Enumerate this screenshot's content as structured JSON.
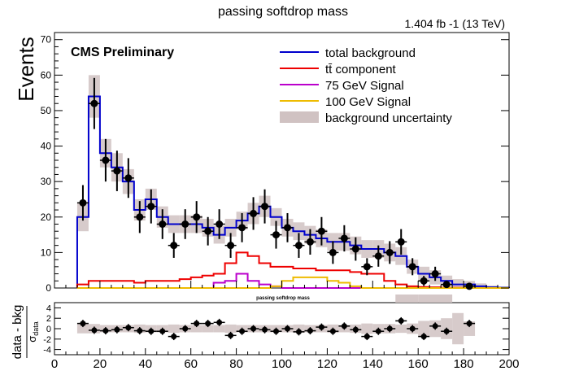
{
  "header": {
    "title": "passing softdrop mass",
    "lumi": "1.404 fb -1 (13 TeV)",
    "experiment": "CMS Preliminary",
    "ratio_title": "passing softdrop mass"
  },
  "legend": {
    "items": [
      {
        "label": "total background",
        "color": "#0000cc"
      },
      {
        "label": "tt̄ component",
        "color": "#ee0000"
      },
      {
        "label": "75 GeV Signal",
        "color": "#bb00cc"
      },
      {
        "label": "100 GeV Signal",
        "color": "#eebb00"
      },
      {
        "label": "background uncertainty",
        "color": "#c9b8b8"
      }
    ]
  },
  "chart_data": [
    {
      "type": "histogram",
      "title": "passing softdrop mass",
      "xlabel": "",
      "ylabel": "Events",
      "xlim": [
        0,
        200
      ],
      "ylim": [
        0,
        72
      ],
      "xticks": [
        0,
        20,
        40,
        60,
        80,
        100,
        120,
        140,
        160,
        180,
        200
      ],
      "yticks": [
        0,
        10,
        20,
        30,
        40,
        50,
        60,
        70
      ],
      "bin_edges": [
        10,
        15,
        20,
        25,
        30,
        35,
        40,
        45,
        50,
        55,
        60,
        65,
        70,
        75,
        80,
        85,
        90,
        95,
        100,
        105,
        110,
        115,
        120,
        125,
        130,
        135,
        140,
        145,
        150,
        155,
        160,
        165,
        170,
        175,
        180,
        185,
        190,
        195,
        200
      ],
      "total_background": [
        20,
        54,
        38,
        34,
        30,
        22,
        25,
        20,
        18,
        18,
        18,
        17,
        15,
        17,
        19,
        21,
        23,
        20,
        17,
        16,
        15,
        14,
        13,
        13,
        12,
        11,
        11,
        10,
        9,
        6,
        4,
        3,
        2,
        1,
        1,
        0.5,
        0.2,
        0.1
      ],
      "background_uncertainty": [
        4,
        6,
        4,
        4,
        3.5,
        3,
        3,
        3,
        2.5,
        2.5,
        2.5,
        2.5,
        2.5,
        2.5,
        2.5,
        3,
        3,
        2.5,
        2.5,
        2.5,
        2.5,
        2.5,
        2.5,
        2.5,
        2.5,
        2.5,
        2.5,
        2.5,
        2.5,
        2,
        2,
        2,
        1.5,
        1.5,
        1,
        0.8,
        0.5,
        0.3
      ],
      "ttbar_component": [
        1,
        2,
        2,
        2,
        2,
        1.5,
        2,
        2,
        2,
        2.5,
        3,
        3.5,
        4,
        7,
        10,
        9,
        7,
        6,
        6,
        5.5,
        5.5,
        5,
        5,
        5,
        4.5,
        4,
        4,
        2,
        1,
        0.5,
        0.3,
        0.2,
        0.1,
        0.1,
        0,
        0,
        0,
        0
      ],
      "signal_75": [
        0,
        0,
        0,
        0,
        0,
        0,
        0,
        0,
        0,
        0,
        0,
        0,
        1.5,
        2,
        4,
        2,
        1,
        0.5,
        0,
        0,
        0,
        0,
        0,
        0,
        0,
        0,
        0,
        0,
        0,
        0,
        0,
        0,
        0,
        0,
        0,
        0,
        0,
        0
      ],
      "signal_100": [
        0,
        0,
        0,
        0,
        0,
        0,
        0,
        0,
        0,
        0,
        0,
        0,
        0,
        0,
        0,
        0,
        0,
        0.5,
        2,
        3,
        3,
        3,
        2,
        1.5,
        0.5,
        0,
        0,
        0,
        0,
        0,
        0,
        0,
        0,
        0,
        0,
        0,
        0,
        0
      ],
      "data": {
        "x": [
          12.5,
          17.5,
          22.5,
          27.5,
          32.5,
          37.5,
          42.5,
          47.5,
          52.5,
          57.5,
          62.5,
          67.5,
          72.5,
          77.5,
          82.5,
          87.5,
          92.5,
          97.5,
          102.5,
          107.5,
          112.5,
          117.5,
          122.5,
          127.5,
          132.5,
          137.5,
          142.5,
          147.5,
          152.5,
          157.5,
          162.5,
          167.5,
          172.5,
          182.5
        ],
        "y": [
          24,
          52,
          36,
          33,
          31,
          20,
          23,
          18,
          12,
          18,
          20,
          16,
          18,
          12,
          17,
          21,
          23,
          15,
          17,
          12,
          13,
          16,
          10,
          14,
          11,
          6,
          9,
          10,
          13,
          6,
          2,
          4,
          1,
          0.5
        ],
        "yerr": [
          5,
          7.2,
          6,
          5.7,
          5.6,
          4.5,
          4.8,
          4.2,
          3.5,
          4.2,
          4.5,
          4,
          4.2,
          3.5,
          4.1,
          4.6,
          4.8,
          3.9,
          4.1,
          3.5,
          3.6,
          4,
          3.2,
          3.7,
          3.3,
          2.4,
          3,
          3.2,
          3.6,
          2.4,
          1.4,
          2,
          1,
          0.7
        ]
      },
      "legend_position": "top-right"
    },
    {
      "type": "scatter",
      "title": "passing softdrop mass",
      "xlabel": "",
      "ylabel": "data - bkg / σ data",
      "xlim": [
        0,
        200
      ],
      "ylim": [
        -5,
        5
      ],
      "yticks": [
        -4,
        -2,
        0,
        2,
        4
      ],
      "bin_edges": [
        10,
        15,
        20,
        25,
        30,
        35,
        40,
        45,
        50,
        55,
        60,
        65,
        70,
        75,
        80,
        85,
        90,
        95,
        100,
        105,
        110,
        115,
        120,
        125,
        130,
        135,
        140,
        145,
        150,
        155,
        160,
        165,
        170,
        175,
        180,
        185,
        190,
        195,
        200
      ],
      "uncertainty_band": [
        0.9,
        0.9,
        0.7,
        0.7,
        0.7,
        0.8,
        0.7,
        0.7,
        0.8,
        0.7,
        0.7,
        0.7,
        0.7,
        0.8,
        0.7,
        0.7,
        0.7,
        0.7,
        0.7,
        0.8,
        0.7,
        0.7,
        0.8,
        0.7,
        0.8,
        1,
        0.9,
        0.9,
        0.8,
        1,
        1.5,
        1.6,
        2,
        3,
        1.4,
        0,
        0,
        0
      ],
      "points": {
        "x": [
          12.5,
          17.5,
          22.5,
          27.5,
          32.5,
          37.5,
          42.5,
          47.5,
          52.5,
          57.5,
          62.5,
          67.5,
          72.5,
          77.5,
          82.5,
          87.5,
          92.5,
          97.5,
          102.5,
          107.5,
          112.5,
          117.5,
          122.5,
          127.5,
          132.5,
          137.5,
          142.5,
          147.5,
          152.5,
          157.5,
          162.5,
          167.5,
          172.5,
          182.5
        ],
        "y": [
          1.0,
          -0.3,
          -0.4,
          -0.2,
          0.2,
          -0.4,
          -0.5,
          -0.5,
          -1.5,
          0,
          1.0,
          1.0,
          1.2,
          -1.3,
          -0.5,
          0,
          -0.2,
          -0.5,
          0,
          -0.6,
          -0.4,
          0.3,
          -0.5,
          0.5,
          -0.2,
          -1.5,
          -0.5,
          0,
          1.5,
          0,
          -1.5,
          0.5,
          -0.5,
          1.0
        ],
        "yerr": [
          0.7,
          0.7,
          0.7,
          0.7,
          0.7,
          0.7,
          0.7,
          0.7,
          0.7,
          0.7,
          0.7,
          0.7,
          0.7,
          0.7,
          0.7,
          0.7,
          0.7,
          0.7,
          0.7,
          0.7,
          0.7,
          0.7,
          0.7,
          0.7,
          0.7,
          0.7,
          0.7,
          0.7,
          0.7,
          0.7,
          0.7,
          0.7,
          0.7,
          0.7
        ]
      },
      "xlabel_ticks": [
        "0",
        "20",
        "40",
        "60",
        "80",
        "100",
        "120",
        "140",
        "160",
        "180",
        "200"
      ]
    }
  ]
}
